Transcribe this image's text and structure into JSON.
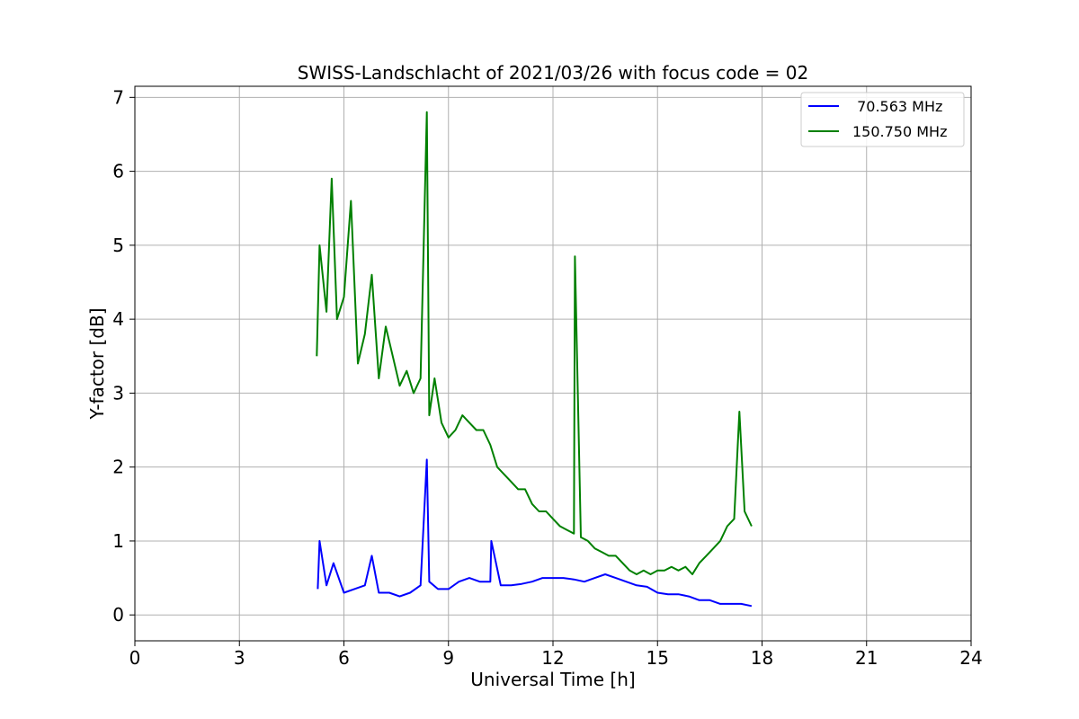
{
  "chart_data": {
    "type": "line",
    "title": "SWISS-Landschlacht of 2021/03/26 with focus code = 02",
    "xlabel": "Universal Time [h]",
    "ylabel": "Y-factor [dB]",
    "xlim": [
      0,
      24
    ],
    "ylim": [
      -0.35,
      7.15
    ],
    "xticks": [
      "0",
      "3",
      "6",
      "9",
      "12",
      "15",
      "18",
      "21",
      "24"
    ],
    "yticks": [
      "0",
      "1",
      "2",
      "3",
      "4",
      "5",
      "6",
      "7"
    ],
    "grid": true,
    "legend_position": "top-right",
    "series": [
      {
        "name": " 70.563 MHz",
        "color": "#0000ff",
        "x": [
          5.25,
          5.3,
          5.5,
          5.7,
          6.0,
          6.3,
          6.6,
          6.8,
          7.0,
          7.3,
          7.6,
          7.9,
          8.2,
          8.38,
          8.45,
          8.7,
          9.0,
          9.3,
          9.6,
          9.9,
          10.2,
          10.23,
          10.5,
          10.8,
          11.1,
          11.4,
          11.7,
          12.0,
          12.3,
          12.6,
          12.9,
          13.2,
          13.5,
          13.8,
          14.1,
          14.4,
          14.7,
          15.0,
          15.3,
          15.6,
          15.9,
          16.2,
          16.5,
          16.8,
          17.1,
          17.4,
          17.7
        ],
        "y": [
          0.35,
          1.0,
          0.4,
          0.7,
          0.3,
          0.35,
          0.4,
          0.8,
          0.3,
          0.3,
          0.25,
          0.3,
          0.4,
          2.1,
          0.45,
          0.35,
          0.35,
          0.45,
          0.5,
          0.45,
          0.45,
          1.0,
          0.4,
          0.4,
          0.42,
          0.45,
          0.5,
          0.5,
          0.5,
          0.48,
          0.45,
          0.5,
          0.55,
          0.5,
          0.45,
          0.4,
          0.38,
          0.3,
          0.28,
          0.28,
          0.25,
          0.2,
          0.2,
          0.15,
          0.15,
          0.15,
          0.12
        ]
      },
      {
        "name": "150.750 MHz",
        "color": "#008000",
        "x": [
          5.22,
          5.3,
          5.5,
          5.65,
          5.8,
          6.0,
          6.2,
          6.4,
          6.6,
          6.8,
          7.0,
          7.2,
          7.4,
          7.6,
          7.8,
          8.0,
          8.2,
          8.38,
          8.45,
          8.6,
          8.8,
          9.0,
          9.2,
          9.4,
          9.6,
          9.8,
          10.0,
          10.2,
          10.4,
          10.6,
          10.8,
          11.0,
          11.2,
          11.4,
          11.6,
          11.8,
          12.0,
          12.2,
          12.4,
          12.6,
          12.63,
          12.8,
          13.0,
          13.2,
          13.4,
          13.6,
          13.8,
          14.0,
          14.2,
          14.4,
          14.6,
          14.8,
          15.0,
          15.2,
          15.4,
          15.6,
          15.8,
          16.0,
          16.2,
          16.4,
          16.6,
          16.8,
          17.0,
          17.2,
          17.35,
          17.5,
          17.7
        ],
        "y": [
          3.5,
          5.0,
          4.1,
          5.9,
          4.0,
          4.3,
          5.6,
          3.4,
          3.8,
          4.6,
          3.2,
          3.9,
          3.5,
          3.1,
          3.3,
          3.0,
          3.2,
          6.8,
          2.7,
          3.2,
          2.6,
          2.4,
          2.5,
          2.7,
          2.6,
          2.5,
          2.5,
          2.3,
          2.0,
          1.9,
          1.8,
          1.7,
          1.7,
          1.5,
          1.4,
          1.4,
          1.3,
          1.2,
          1.15,
          1.1,
          4.85,
          1.05,
          1.0,
          0.9,
          0.85,
          0.8,
          0.8,
          0.7,
          0.6,
          0.55,
          0.6,
          0.55,
          0.6,
          0.6,
          0.65,
          0.6,
          0.65,
          0.55,
          0.7,
          0.8,
          0.9,
          1.0,
          1.2,
          1.3,
          2.75,
          1.4,
          1.2
        ]
      }
    ]
  }
}
